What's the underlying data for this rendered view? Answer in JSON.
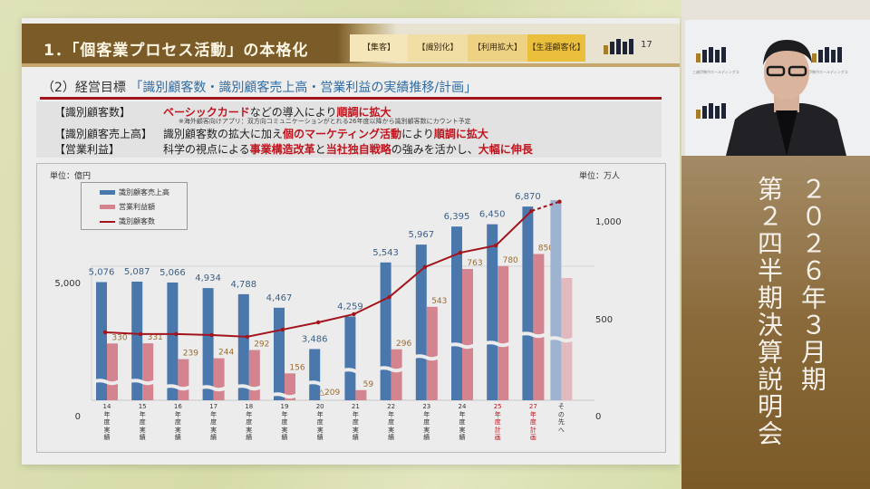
{
  "slide": {
    "header": {
      "title": "1．「個客業プロセス活動」の本格化",
      "steps": [
        "【集客】",
        "【識別化】",
        "【利用拡大】",
        "【生涯顧客化】"
      ],
      "page_number": "17",
      "logo_icon": "company-logo-icon"
    },
    "section": {
      "prefix": "（2）経営目標",
      "highlight": "「識別顧客数・識別顧客売上高・営業利益の実績推移/計画」"
    },
    "info": {
      "rows": [
        {
          "label": "【識別顧客数】",
          "parts": [
            {
              "text": "ベーシックカード",
              "red": true
            },
            {
              "text": "などの導入により",
              "red": false
            },
            {
              "text": "順調に拡大",
              "red": true
            }
          ]
        },
        {
          "label": "【識別顧客売上高】",
          "parts": [
            {
              "text": "識別顧客数の拡大に加え",
              "red": false
            },
            {
              "text": "個のマーケティング活動",
              "red": true
            },
            {
              "text": "により",
              "red": false
            },
            {
              "text": "順調に拡大",
              "red": true
            }
          ]
        },
        {
          "label": "【営業利益】",
          "parts": [
            {
              "text": "科学の視点による",
              "red": false
            },
            {
              "text": "事業構造改革",
              "red": true
            },
            {
              "text": "と",
              "red": false
            },
            {
              "text": "当社独自戦略",
              "red": true
            },
            {
              "text": "の強みを活かし、",
              "red": false
            },
            {
              "text": "大幅に伸長",
              "red": true
            }
          ]
        }
      ],
      "note": "※海外顧客向けアプリ：双方向コミュニケーションがとれる26年度以降から識別顧客数にカウント予定"
    }
  },
  "sidebar": {
    "line1": "２０２６年３月期",
    "line2": "第２四半期決算説明会"
  },
  "video": {
    "background_logo_text": "三越伊勢丹ホールディングス"
  },
  "chart_data": {
    "type": "bar",
    "title": "識別顧客数・識別顧客売上高・営業利益の実績推移/計画",
    "unit_left": "単位：億円",
    "unit_right": "単位：万人",
    "left_axis": {
      "ticks": [
        "5,000",
        "0"
      ],
      "range": [
        0,
        7000
      ],
      "broken_axis": true
    },
    "right_axis": {
      "ticks": [
        "1,000",
        "500",
        "0"
      ],
      "range": [
        0,
        1000
      ]
    },
    "legend": [
      "識別顧客売上高",
      "営業利益額",
      "識別顧客数"
    ],
    "legend_position": "top-left",
    "categories": [
      {
        "year": "14",
        "label": "年度実績",
        "plan": false
      },
      {
        "year": "15",
        "label": "年度実績",
        "plan": false
      },
      {
        "year": "16",
        "label": "年度実績",
        "plan": false
      },
      {
        "year": "17",
        "label": "年度実績",
        "plan": false
      },
      {
        "year": "18",
        "label": "年度実績",
        "plan": false
      },
      {
        "year": "19",
        "label": "年度実績",
        "plan": false
      },
      {
        "year": "20",
        "label": "年度実績",
        "plan": false
      },
      {
        "year": "21",
        "label": "年度実績",
        "plan": false
      },
      {
        "year": "22",
        "label": "年度実績",
        "plan": false
      },
      {
        "year": "23",
        "label": "年度実績",
        "plan": false
      },
      {
        "year": "24",
        "label": "年度実績",
        "plan": false
      },
      {
        "year": "25",
        "label": "年度計画",
        "plan": true
      },
      {
        "year": "27",
        "label": "年度計画",
        "plan": true
      },
      {
        "year": "",
        "label": "その先へ",
        "plan": false
      }
    ],
    "series": [
      {
        "name": "識別顧客売上高",
        "type": "bar",
        "axis": "left",
        "color": "#4a78ad",
        "values": [
          5076,
          5087,
          5066,
          4934,
          4788,
          4467,
          3486,
          4259,
          5543,
          5967,
          6395,
          6450,
          6870,
          null
        ],
        "labels": [
          "5,076",
          "5,087",
          "5,066",
          "4,934",
          "4,788",
          "4,467",
          "3,486",
          "4,259",
          "5,543",
          "5,967",
          "6,395",
          "6,450",
          "6,870",
          ""
        ]
      },
      {
        "name": "営業利益額",
        "type": "bar",
        "axis": "left",
        "color": "#d4848f",
        "values": [
          330,
          331,
          239,
          244,
          292,
          156,
          -209,
          59,
          296,
          543,
          763,
          780,
          850,
          null
        ],
        "labels": [
          "330",
          "331",
          "239",
          "244",
          "292",
          "156",
          "△209",
          "59",
          "296",
          "543",
          "763",
          "780",
          "850",
          ""
        ]
      },
      {
        "name": "識別顧客数",
        "type": "line",
        "axis": "right",
        "color": "#a3141c",
        "values": [
          349,
          340,
          340,
          335,
          326,
          363,
          400,
          442,
          530,
          684,
          758,
          795,
          972,
          1020
        ]
      }
    ],
    "grid": true
  }
}
